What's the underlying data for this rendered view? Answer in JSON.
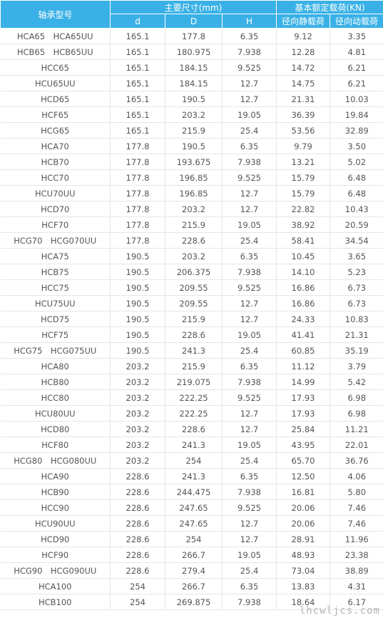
{
  "header": {
    "model_label": "轴承型号",
    "dims_group": "主要尺寸(mm)",
    "load_group": "基本额定载荷(KN)",
    "col_d": "d",
    "col_D": "D",
    "col_H": "H",
    "col_static": "径向静载荷",
    "col_dynamic": "径向动载荷"
  },
  "rows": [
    [
      "HCA65　HCA65UU",
      "165.1",
      "177.8",
      "6.35",
      "9.12",
      "3.35"
    ],
    [
      "HCB65　HCB65UU",
      "165.1",
      "180.975",
      "7.938",
      "12.28",
      "4.81"
    ],
    [
      "HCC65",
      "165.1",
      "184.15",
      "9.525",
      "14.72",
      "6.21"
    ],
    [
      "HCU65UU",
      "165.1",
      "184.15",
      "12.7",
      "14.75",
      "6.21"
    ],
    [
      "HCD65",
      "165.1",
      "190.5",
      "12.7",
      "21.31",
      "10.03"
    ],
    [
      "HCF65",
      "165.1",
      "203.2",
      "19.05",
      "36.39",
      "19.84"
    ],
    [
      "HCG65",
      "165.1",
      "215.9",
      "25.4",
      "53.56",
      "32.89"
    ],
    [
      "HCA70",
      "177.8",
      "190.5",
      "6.35",
      "9.79",
      "3.50"
    ],
    [
      "HCB70",
      "177.8",
      "193.675",
      "7.938",
      "13.21",
      "5.02"
    ],
    [
      "HCC70",
      "177.8",
      "196.85",
      "9.525",
      "15.79",
      "6.48"
    ],
    [
      "HCU70UU",
      "177.8",
      "196.85",
      "12.7",
      "15.79",
      "6.48"
    ],
    [
      "HCD70",
      "177.8",
      "203.2",
      "12.7",
      "22.82",
      "10.43"
    ],
    [
      "HCF70",
      "177.8",
      "215.9",
      "19.05",
      "38.92",
      "20.59"
    ],
    [
      "HCG70　HCG070UU",
      "177.8",
      "228.6",
      "25.4",
      "58.41",
      "34.54"
    ],
    [
      "HCA75",
      "190.5",
      "203.2",
      "6.35",
      "10.45",
      "3.65"
    ],
    [
      "HCB75",
      "190.5",
      "206.375",
      "7.938",
      "14.10",
      "5.23"
    ],
    [
      "HCC75",
      "190.5",
      "209.55",
      "9.525",
      "16.86",
      "6.73"
    ],
    [
      "HCU75UU",
      "190.5",
      "209.55",
      "12.7",
      "16.86",
      "6.73"
    ],
    [
      "HCD75",
      "190.5",
      "215.9",
      "12.7",
      "24.33",
      "10.83"
    ],
    [
      "HCF75",
      "190.5",
      "228.6",
      "19.05",
      "41.41",
      "21.31"
    ],
    [
      "HCG75　HCG075UU",
      "190.5",
      "241.3",
      "25.4",
      "60.85",
      "35.19"
    ],
    [
      "HCA80",
      "203.2",
      "215.9",
      "6.35",
      "11.12",
      "3.79"
    ],
    [
      "HCB80",
      "203.2",
      "219.075",
      "7.938",
      "14.99",
      "5.42"
    ],
    [
      "HCC80",
      "203.2",
      "222.25",
      "9.525",
      "17.93",
      "6.98"
    ],
    [
      "HCU80UU",
      "203.2",
      "222.25",
      "12.7",
      "17.93",
      "6.98"
    ],
    [
      "HCD80",
      "203.2",
      "228.6",
      "12.7",
      "25.84",
      "11.21"
    ],
    [
      "HCF80",
      "203.2",
      "241.3",
      "19.05",
      "43.95",
      "22.01"
    ],
    [
      "HCG80　HCG080UU",
      "203.2",
      "254",
      "25.4",
      "65.70",
      "36.76"
    ],
    [
      "HCA90",
      "228.6",
      "241.3",
      "6.35",
      "12.50",
      "4.06"
    ],
    [
      "HCB90",
      "228.6",
      "244.475",
      "7.938",
      "16.81",
      "5.80"
    ],
    [
      "HCC90",
      "228.6",
      "247.65",
      "9.525",
      "20.06",
      "7.46"
    ],
    [
      "HCU90UU",
      "228.6",
      "247.65",
      "12.7",
      "20.06",
      "7.46"
    ],
    [
      "HCD90",
      "228.6",
      "254",
      "12.7",
      "28.91",
      "11.96"
    ],
    [
      "HCF90",
      "228.6",
      "266.7",
      "19.05",
      "48.93",
      "23.38"
    ],
    [
      "HCG90　HCG090UU",
      "228.6",
      "279.4",
      "25.4",
      "73.04",
      "38.89"
    ],
    [
      "HCA100",
      "254",
      "266.7",
      "6.35",
      "13.83",
      "4.31"
    ],
    [
      "HCB100",
      "254",
      "269.875",
      "7.938",
      "18.64",
      "6.17"
    ]
  ],
  "watermark": "lhcwljcs.com",
  "colors": {
    "header_bg": "#39b1e6",
    "header_text": "#ffffff",
    "cell_text": "#555555",
    "grid_line": "#e6e6e6"
  }
}
